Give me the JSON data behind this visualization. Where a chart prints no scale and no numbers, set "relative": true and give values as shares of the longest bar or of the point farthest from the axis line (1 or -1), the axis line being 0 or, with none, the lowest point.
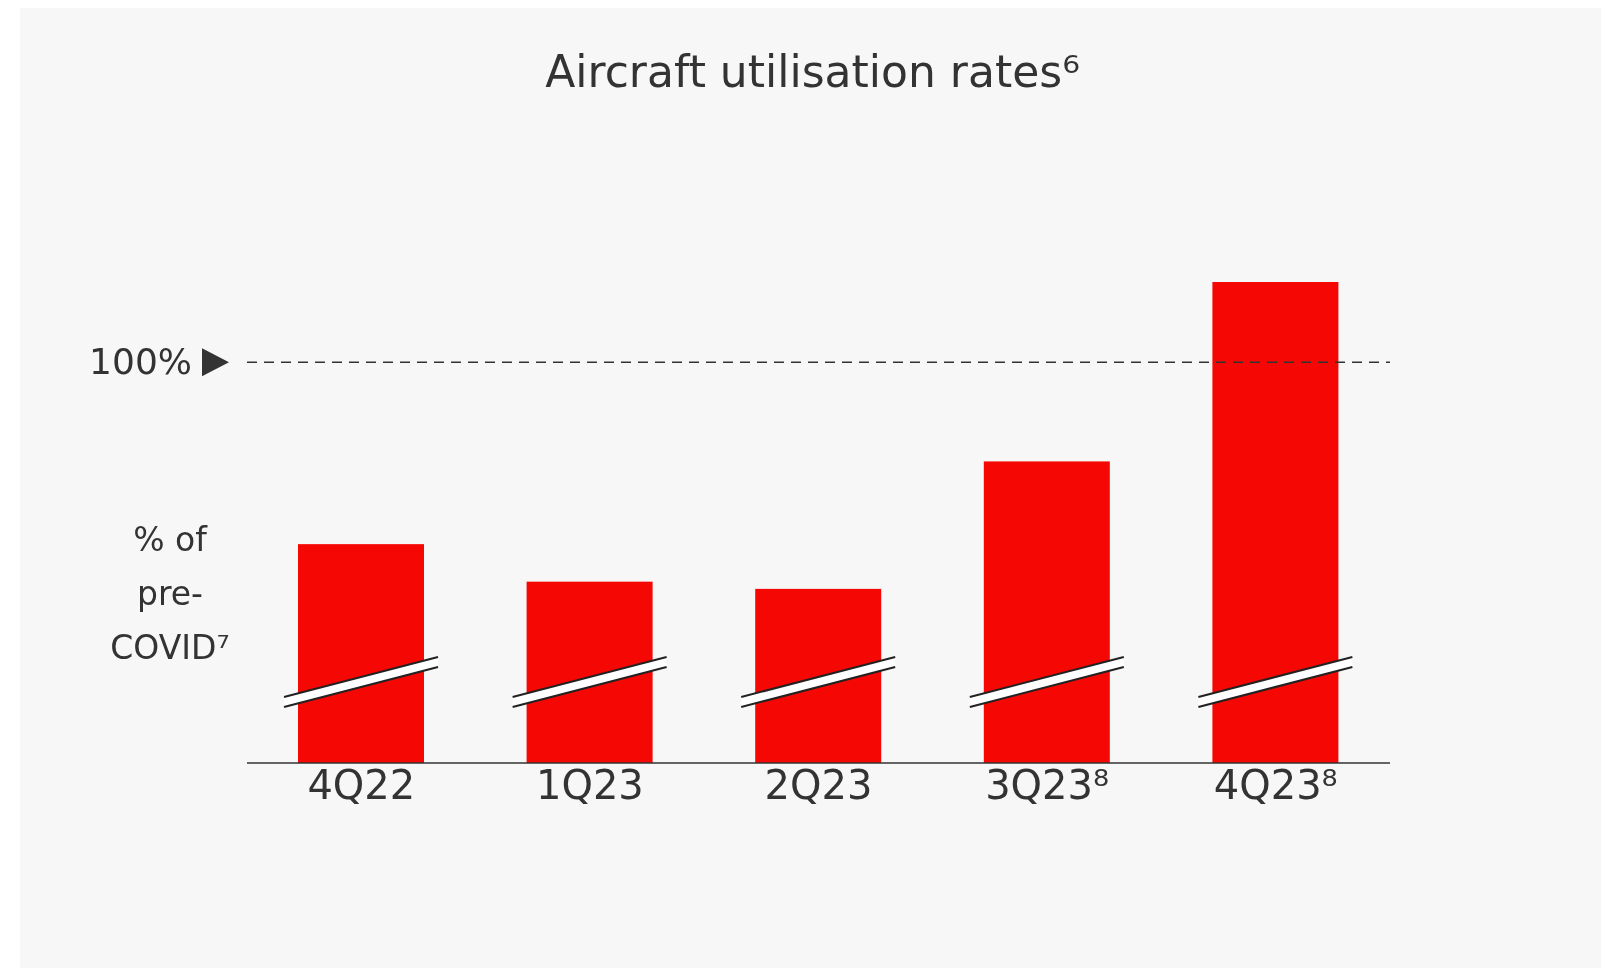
{
  "chart_data": {
    "type": "bar",
    "title": "Aircraft utilisation rates⁶",
    "ylabel": "% of pre-COVID⁷",
    "categories": [
      "4Q22",
      "1Q23",
      "2Q23",
      "3Q23⁸",
      "4Q23⁸"
    ],
    "values": [
      0.455,
      0.377,
      0.362,
      0.627,
      1
    ],
    "color": "#f50804",
    "relative": true,
    "annotations": [
      "100%"
    ],
    "ref_lines": [
      {
        "axis": "y",
        "value": 0.833,
        "color": "#333333",
        "line_style": "dashed"
      }
    ]
  }
}
